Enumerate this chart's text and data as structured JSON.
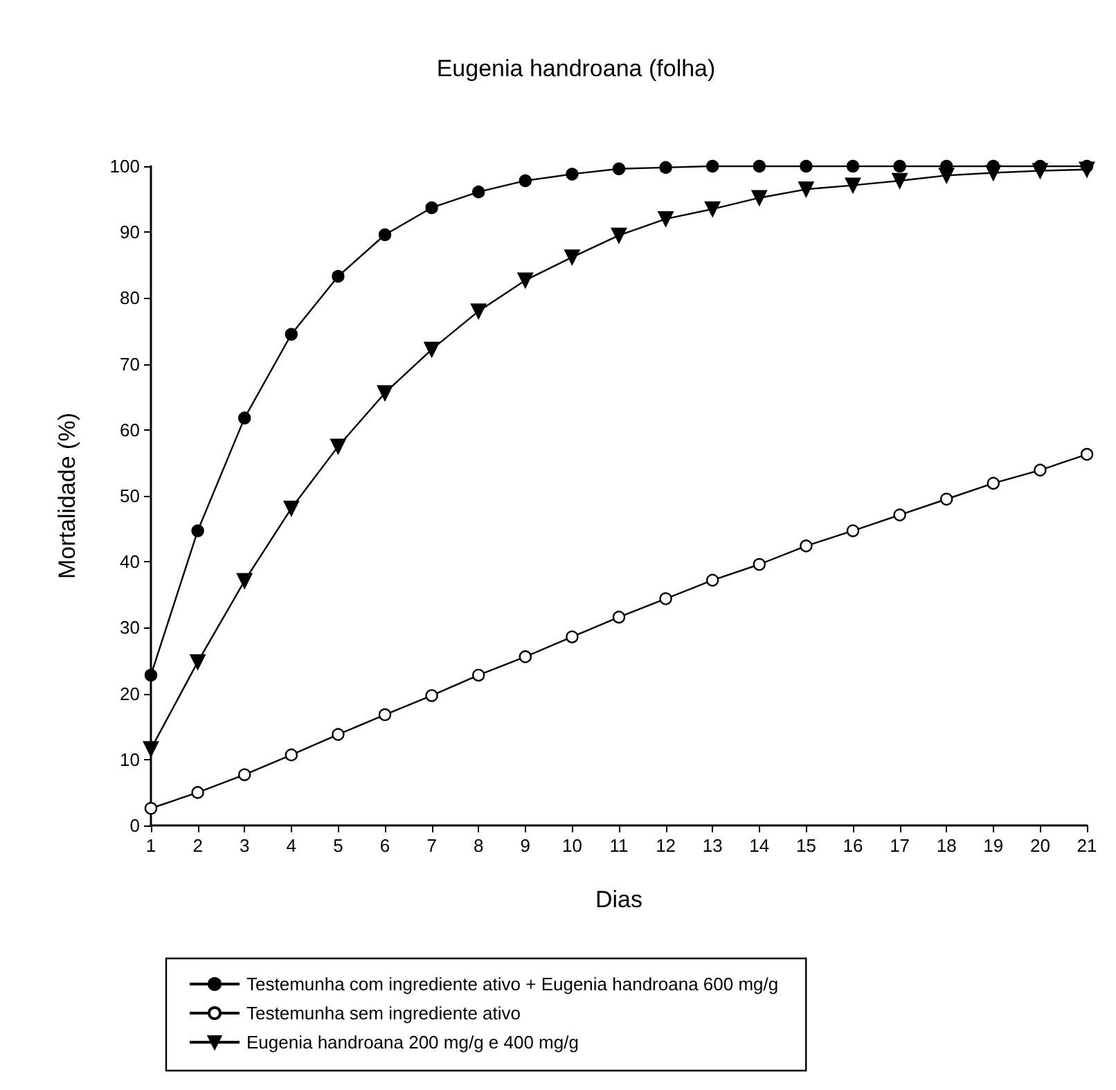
{
  "chart_data": {
    "type": "line",
    "title": "Eugenia handroana (folha)",
    "xlabel": "Dias",
    "ylabel": "Mortalidade (%)",
    "x": [
      1,
      2,
      3,
      4,
      5,
      6,
      7,
      8,
      9,
      10,
      11,
      12,
      13,
      14,
      15,
      16,
      17,
      18,
      19,
      20,
      21
    ],
    "xlim": [
      1,
      21
    ],
    "xticks": [
      1,
      2,
      3,
      4,
      5,
      6,
      7,
      8,
      9,
      10,
      11,
      12,
      13,
      14,
      15,
      16,
      17,
      18,
      19,
      20,
      21
    ],
    "ylim": [
      0,
      100
    ],
    "yticks": [
      0,
      10,
      20,
      30,
      40,
      50,
      60,
      70,
      80,
      90,
      100
    ],
    "grid": false,
    "legend": "bottom",
    "line_style": "solid",
    "series": [
      {
        "name": "Testemunha com ingrediente ativo + Eugenia handroana 600 mg/g",
        "color": "#000000",
        "marker": "circle",
        "values": [
          22.8,
          44.7,
          61.8,
          74.5,
          83.3,
          89.6,
          93.7,
          96.1,
          97.8,
          98.8,
          99.6,
          99.8,
          100,
          100,
          100,
          100,
          100,
          100,
          100,
          100,
          100
        ]
      },
      {
        "name": "Testemunha sem ingrediente ativo",
        "color": "#ffffff",
        "marker": "circle",
        "values": [
          2.6,
          5.0,
          7.7,
          10.7,
          13.8,
          16.8,
          19.7,
          22.8,
          25.6,
          28.6,
          31.6,
          34.4,
          37.2,
          39.6,
          42.4,
          44.7,
          47.1,
          49.5,
          51.9,
          53.9,
          56.3
        ]
      },
      {
        "name": "Eugenia handroana 200 mg/g e 400 mg/g",
        "color": "#000000",
        "marker": "triangle",
        "values": [
          11.6,
          24.8,
          37.1,
          48.1,
          57.5,
          65.6,
          72.2,
          78.0,
          82.7,
          86.2,
          89.5,
          92.0,
          93.5,
          95.2,
          96.5,
          97.1,
          97.8,
          98.6,
          99.0,
          99.3,
          99.5
        ]
      }
    ]
  }
}
